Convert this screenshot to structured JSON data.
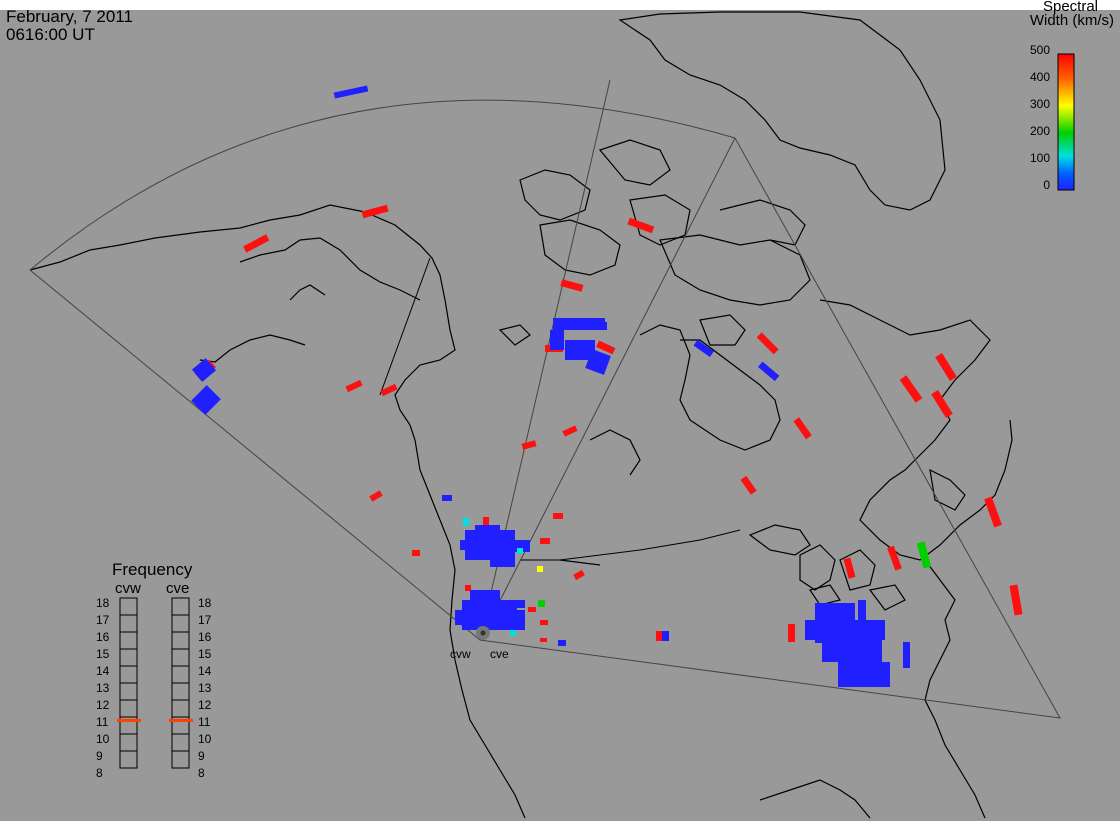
{
  "header": {
    "date": "February, 7 2011",
    "time": "0616:00 UT"
  },
  "color_scale": {
    "title_line1": "Spectral",
    "title_line2": "Width (km/s)",
    "ticks": [
      "500",
      "400",
      "300",
      "200",
      "100",
      "0"
    ],
    "colors": [
      "#ff0000",
      "#ff8000",
      "#ffff00",
      "#00d000",
      "#00e0e0",
      "#0050ff",
      "#2020ff"
    ]
  },
  "frequency_panel": {
    "title": "Frequency",
    "left_label": "cvw",
    "right_label": "cve",
    "ticks": [
      "18",
      "17",
      "16",
      "15",
      "14",
      "13",
      "12",
      "11",
      "10",
      "9",
      "8"
    ],
    "marker_color": "#ff4000",
    "cvw_frequency_mhz": 10.8,
    "cve_frequency_mhz": 10.8
  },
  "sites": {
    "west": "cvw",
    "east": "cve"
  },
  "colors": {
    "background": "#999999",
    "coast": "#000000",
    "fov": "#444444",
    "high_width": "#ff0000",
    "low_width": "#1a1aff"
  }
}
